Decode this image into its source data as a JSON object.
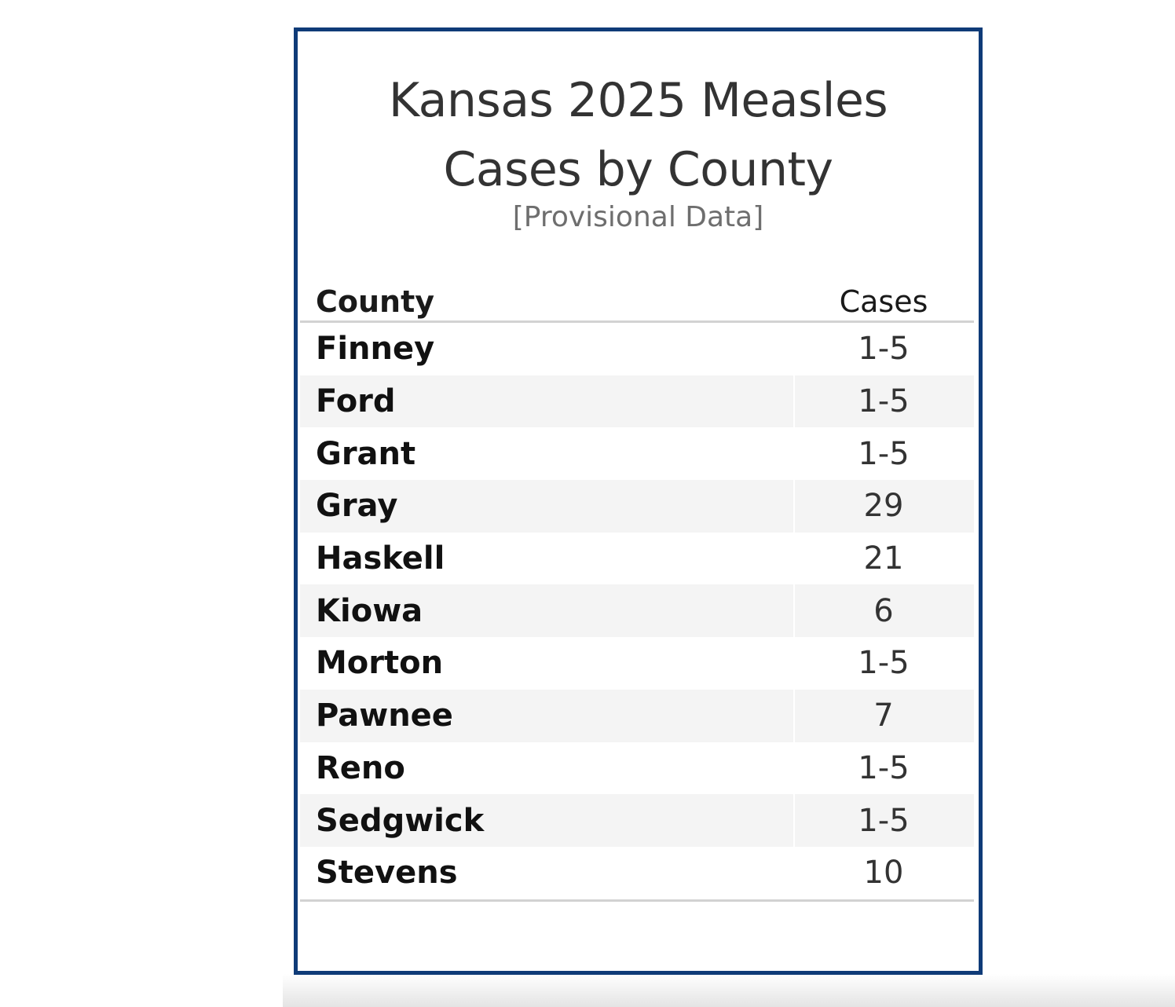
{
  "header": {
    "title_line1": "Kansas 2025 Measles",
    "title_line2": "Cases by County",
    "subtitle": "[Provisional Data]"
  },
  "colors": {
    "border": "#0f3b78",
    "title": "#333333",
    "subtitle": "#6e6e6e",
    "row_shade": "#f4f4f4",
    "rule": "#d2d2d2"
  },
  "chart_data": {
    "type": "table",
    "title": "Kansas 2025 Measles Cases by County",
    "subtitle": "[Provisional Data]",
    "columns": [
      "County",
      "Cases"
    ],
    "rows": [
      {
        "county": "Finney",
        "cases": "1-5"
      },
      {
        "county": "Ford",
        "cases": "1-5"
      },
      {
        "county": "Grant",
        "cases": "1-5"
      },
      {
        "county": "Gray",
        "cases": "29"
      },
      {
        "county": "Haskell",
        "cases": "21"
      },
      {
        "county": "Kiowa",
        "cases": "6"
      },
      {
        "county": "Morton",
        "cases": "1-5"
      },
      {
        "county": "Pawnee",
        "cases": "7"
      },
      {
        "county": "Reno",
        "cases": "1-5"
      },
      {
        "county": "Sedgwick",
        "cases": "1-5"
      },
      {
        "county": "Stevens",
        "cases": "10"
      }
    ]
  }
}
